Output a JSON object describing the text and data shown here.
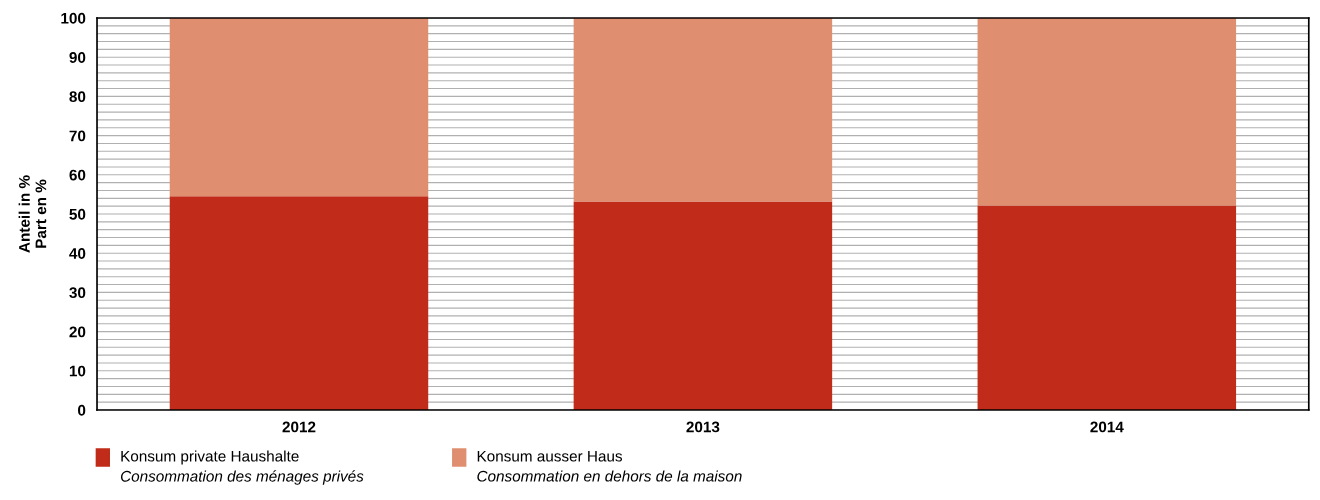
{
  "chart_data": {
    "type": "bar",
    "stacked": true,
    "ylabel": "Anteil in %\nPart en %",
    "categories": [
      "2012",
      "2013",
      "2014"
    ],
    "series": [
      {
        "name": "Konsum private Haushalte\nConsommation des ménages privés",
        "color": "#c02c19",
        "values": [
          54.5,
          53.2,
          52.2
        ]
      },
      {
        "name": "Konsum ausser Haus\nConsommation en dehors de la maison",
        "color": "#df8e70",
        "values": [
          45.5,
          46.8,
          47.8
        ]
      }
    ],
    "ylim": [
      0,
      100
    ],
    "yticks": [
      0,
      {
        "value": 2,
        "label": null
      },
      {
        "value": 4,
        "label": null
      },
      {
        "value": 6,
        "label": null
      },
      {
        "value": 8,
        "label": null
      },
      10,
      {
        "value": 12,
        "label": null
      },
      {
        "value": 14,
        "label": null
      },
      {
        "value": 16,
        "label": null
      },
      {
        "value": 18,
        "label": null
      },
      20,
      {
        "value": 22,
        "label": null
      },
      {
        "value": 24,
        "label": null
      },
      {
        "value": 26,
        "label": null
      },
      {
        "value": 28,
        "label": null
      },
      30,
      {
        "value": 32,
        "label": null
      },
      {
        "value": 34,
        "label": null
      },
      {
        "value": 36,
        "label": null
      },
      {
        "value": 38,
        "label": null
      },
      40,
      {
        "value": 42,
        "label": null
      },
      {
        "value": 44,
        "label": null
      },
      {
        "value": 46,
        "label": null
      },
      {
        "value": 48,
        "label": null
      },
      50,
      {
        "value": 52,
        "label": null
      },
      {
        "value": 54,
        "label": null
      },
      {
        "value": 56,
        "label": null
      },
      {
        "value": 58,
        "label": null
      },
      60,
      {
        "value": 62,
        "label": null
      },
      {
        "value": 64,
        "label": null
      },
      {
        "value": 66,
        "label": null
      },
      {
        "value": 68,
        "label": null
      },
      70,
      {
        "value": 72,
        "label": null
      },
      {
        "value": 74,
        "label": null
      },
      {
        "value": 76,
        "label": null
      },
      {
        "value": 78,
        "label": null
      },
      80,
      {
        "value": 82,
        "label": null
      },
      {
        "value": 84,
        "label": null
      },
      {
        "value": 86,
        "label": null
      },
      {
        "value": 88,
        "label": null
      },
      90,
      {
        "value": 92,
        "label": null
      },
      {
        "value": 94,
        "label": null
      },
      {
        "value": 96,
        "label": null
      },
      {
        "value": 98,
        "label": null
      },
      100
    ],
    "grid": "y",
    "legend": "bottom"
  }
}
